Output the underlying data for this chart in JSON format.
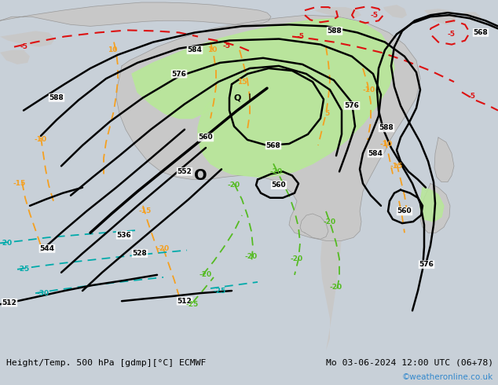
{
  "title_left": "Height/Temp. 500 hPa [gdmp][°C] ECMWF",
  "title_right": "Mo 03-06-2024 12:00 UTC (06+78)",
  "watermark": "©weatheronline.co.uk",
  "bg_ocean": "#c8d0d8",
  "bg_land": "#c8c8c8",
  "bg_land_green": "#b8d8a0",
  "rain_green": "#a8d870",
  "fig_width": 6.34,
  "fig_height": 4.9,
  "dpi": 100,
  "watermark_color": "#3388cc",
  "footer_bg": "#d8e0e8"
}
